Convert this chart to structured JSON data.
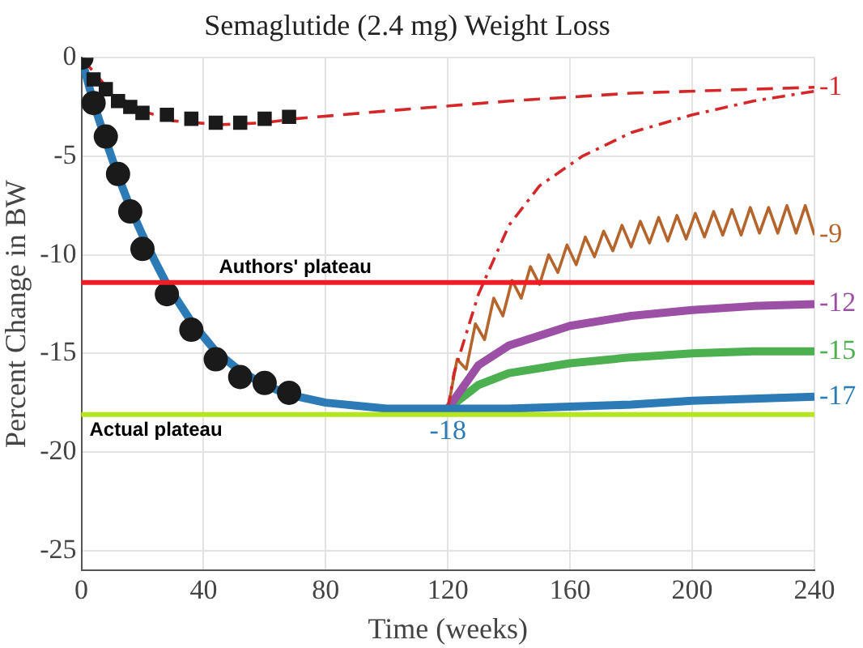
{
  "chart_data": {
    "type": "line",
    "title": "Semaglutide (2.4 mg) Weight Loss",
    "xlabel": "Time (weeks)",
    "ylabel": "Percent Change in BW",
    "xlim": [
      0,
      240
    ],
    "xticks": [
      0,
      40,
      80,
      120,
      160,
      200,
      240
    ],
    "ylim": [
      -26,
      0
    ],
    "yticks": [
      -25,
      -20,
      -15,
      -10,
      -5,
      0
    ],
    "grid": true,
    "legend": false,
    "series": [
      {
        "type": "line",
        "color": "#2c7bb6",
        "marker": "none",
        "x": [
          0,
          4,
          8,
          12,
          16,
          20,
          24,
          28,
          36,
          44,
          52,
          60,
          68,
          80,
          100,
          120,
          140,
          160,
          180,
          200,
          220,
          240
        ],
        "values": [
          0,
          -2.3,
          -4.2,
          -6,
          -7.6,
          -9,
          -10.3,
          -11.5,
          -13.4,
          -14.9,
          -15.9,
          -16.6,
          -17.1,
          -17.5,
          -17.8,
          -17.8,
          -17.8,
          -17.7,
          -17.6,
          -17.4,
          -17.3,
          -17.2
        ],
        "value_labels": [
          null,
          null,
          null,
          null,
          null,
          null,
          null,
          null,
          null,
          null,
          null,
          null,
          null,
          null,
          null,
          "-18",
          null,
          null,
          null,
          null,
          null,
          "-17"
        ]
      },
      {
        "type": "scatter",
        "color": "#1a1a1a",
        "marker": "circle",
        "x": [
          0,
          4,
          8,
          12,
          16,
          20,
          28,
          36,
          44,
          52,
          60,
          68
        ],
        "values": [
          0,
          -2.3,
          -4,
          -5.9,
          -7.8,
          -9.7,
          -12,
          -13.8,
          -15.3,
          -16.2,
          -16.5,
          -17
        ]
      },
      {
        "type": "scatter",
        "color": "#1a1a1a",
        "marker": "square",
        "x": [
          4,
          8,
          12,
          16,
          20,
          28,
          36,
          44,
          52,
          60,
          68
        ],
        "values": [
          -1.1,
          -1.6,
          -2.2,
          -2.5,
          -2.8,
          -2.9,
          -3.1,
          -3.3,
          -3.3,
          -3.1,
          -3
        ]
      },
      {
        "type": "line",
        "color": "#d62728",
        "marker": "none",
        "line_style": "dashed",
        "x": [
          0,
          10,
          20,
          30,
          45,
          60,
          70,
          100,
          140,
          180,
          240
        ],
        "values": [
          0,
          -1.8,
          -2.7,
          -3.2,
          -3.4,
          -3.3,
          -3.1,
          -2.7,
          -2.2,
          -1.8,
          -1.5
        ],
        "value_labels": [
          null,
          null,
          null,
          null,
          null,
          null,
          null,
          null,
          null,
          null,
          "-1"
        ]
      },
      {
        "type": "line",
        "color": "#d62728",
        "marker": "none",
        "line_style": "dashdot",
        "x": [
          120,
          122,
          125,
          130,
          140,
          150,
          164,
          180,
          200,
          220,
          240
        ],
        "values": [
          -17.8,
          -16,
          -14.5,
          -12,
          -8.5,
          -6.5,
          -5,
          -3.8,
          -2.9,
          -2.2,
          -1.7
        ]
      },
      {
        "type": "line",
        "color": "#b5652b",
        "marker": "none",
        "x": [
          120,
          123,
          126,
          129,
          132,
          135,
          138,
          141,
          144,
          147,
          150,
          153,
          156,
          159,
          162,
          165,
          168,
          171,
          174,
          177,
          180,
          183,
          186,
          189,
          192,
          195,
          198,
          201,
          204,
          207,
          210,
          213,
          216,
          219,
          222,
          225,
          228,
          231,
          234,
          237,
          240
        ],
        "values": [
          -17.8,
          -15.3,
          -15.8,
          -13.5,
          -14.3,
          -12.2,
          -13.1,
          -11.3,
          -12.2,
          -10.6,
          -11.5,
          -10,
          -10.9,
          -9.5,
          -10.5,
          -9.1,
          -10.1,
          -8.8,
          -9.8,
          -8.5,
          -9.6,
          -8.3,
          -9.4,
          -8.1,
          -9.3,
          -8,
          -9.2,
          -7.9,
          -9.1,
          -7.8,
          -9,
          -7.7,
          -9,
          -7.6,
          -8.9,
          -7.6,
          -8.9,
          -7.5,
          -8.9,
          -7.5,
          -9
        ],
        "value_labels": [
          null,
          null,
          null,
          null,
          null,
          null,
          null,
          null,
          null,
          null,
          null,
          null,
          null,
          null,
          null,
          null,
          null,
          null,
          null,
          null,
          null,
          null,
          null,
          null,
          null,
          null,
          null,
          null,
          null,
          null,
          null,
          null,
          null,
          null,
          null,
          null,
          null,
          null,
          null,
          null,
          "-9"
        ]
      },
      {
        "type": "line",
        "color": "#9b4fa5",
        "marker": "none",
        "x": [
          120,
          130,
          140,
          160,
          180,
          200,
          220,
          240
        ],
        "values": [
          -17.8,
          -15.6,
          -14.6,
          -13.6,
          -13.1,
          -12.8,
          -12.6,
          -12.5
        ],
        "value_labels": [
          null,
          null,
          null,
          null,
          null,
          null,
          null,
          "-12"
        ]
      },
      {
        "type": "line",
        "color": "#4caf50",
        "marker": "none",
        "x": [
          120,
          130,
          140,
          160,
          180,
          200,
          220,
          240
        ],
        "values": [
          -17.8,
          -16.6,
          -16,
          -15.5,
          -15.2,
          -15,
          -14.9,
          -14.9
        ],
        "value_labels": [
          null,
          null,
          null,
          null,
          null,
          null,
          null,
          "-15"
        ]
      }
    ],
    "ref_lines": [
      {
        "axis": "y",
        "value": -11.4,
        "label": "Authors' plateau",
        "color": "#ee1c25"
      },
      {
        "axis": "y",
        "value": -18.1,
        "label": "Actual plateau",
        "color": "#b5e61d"
      }
    ]
  }
}
